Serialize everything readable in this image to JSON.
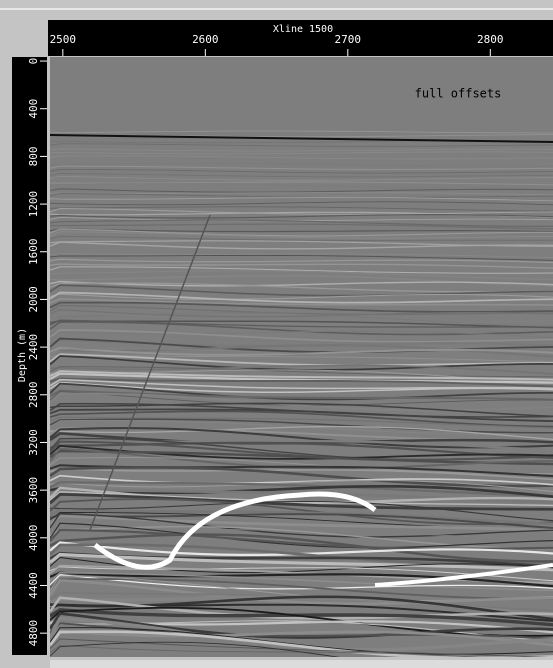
{
  "top_axis": {
    "title": "Xline 1500",
    "range": [
      2491,
      2844
    ],
    "ticks": [
      2500,
      2600,
      2700,
      2800
    ]
  },
  "left_axis": {
    "title": "Depth (m)",
    "range": [
      -34,
      5000
    ],
    "ticks": [
      0,
      400,
      800,
      1200,
      1600,
      2000,
      2400,
      2800,
      3200,
      3600,
      4000,
      4400,
      4800
    ]
  },
  "annotation": "full offsets"
}
